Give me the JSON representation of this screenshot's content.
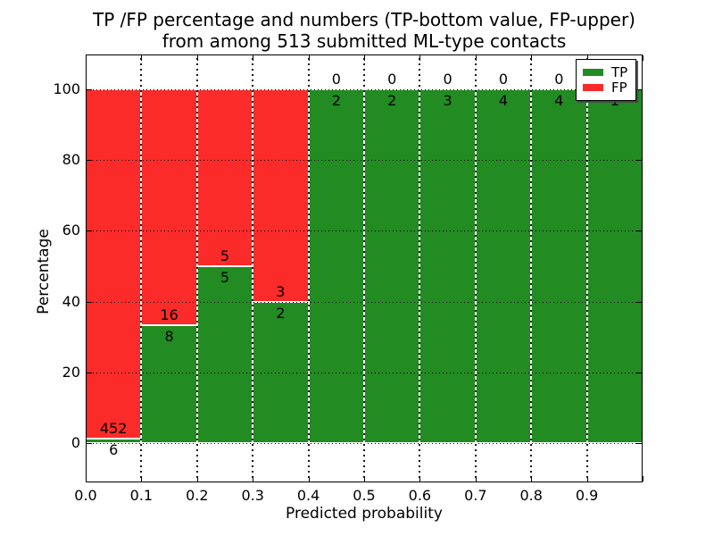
{
  "figure": {
    "title_line1": "TP /FP percentage and numbers (TP-bottom value, FP-upper)",
    "title_line2": "from among 513 submitted ML-type contacts",
    "background_color": "#ffffff",
    "text_color": "#000000"
  },
  "chart_data": {
    "type": "bar",
    "subtype": "stacked-percentage-histogram",
    "title": "TP /FP percentage and numbers (TP-bottom value, FP-upper) from among 513 submitted ML-type contacts",
    "xlabel": "Predicted probability",
    "ylabel": "Percentage",
    "total_submitted": 513,
    "x_tick_labels": [
      "0.0",
      "0.1",
      "0.2",
      "0.3",
      "0.4",
      "0.5",
      "0.6",
      "0.7",
      "0.8",
      "0.9"
    ],
    "y_tick_values": [
      0,
      20,
      40,
      60,
      80,
      100
    ],
    "y_tick_labels": [
      "0",
      "20",
      "40",
      "60",
      "80",
      "100"
    ],
    "bin_starts": [
      0.0,
      0.1,
      0.2,
      0.3,
      0.4,
      0.5,
      0.6,
      0.7,
      0.8,
      0.9
    ],
    "bin_width": 0.1,
    "xlim": [
      0.0,
      1.0
    ],
    "ylim": [
      -10.6,
      110.1
    ],
    "grid": {
      "horizontal_dotted": true,
      "vertical_dashed": true
    },
    "series": [
      {
        "name": "TP",
        "color": "#228b22",
        "counts": [
          6,
          8,
          5,
          2,
          2,
          2,
          3,
          4,
          4,
          1
        ],
        "percents": [
          1.31,
          33.33,
          50,
          40,
          100,
          100,
          100,
          100,
          100,
          100
        ]
      },
      {
        "name": "FP",
        "color": "#fa2b28",
        "counts": [
          452,
          16,
          5,
          3,
          0,
          0,
          0,
          0,
          0,
          0
        ],
        "percents": [
          98.69,
          66.67,
          50,
          60,
          0,
          0,
          0,
          0,
          0,
          0
        ]
      }
    ],
    "legend": {
      "position": "upper right",
      "entries": [
        {
          "label": "TP",
          "color": "#228b22"
        },
        {
          "label": "FP",
          "color": "#fa2b28"
        }
      ]
    }
  }
}
